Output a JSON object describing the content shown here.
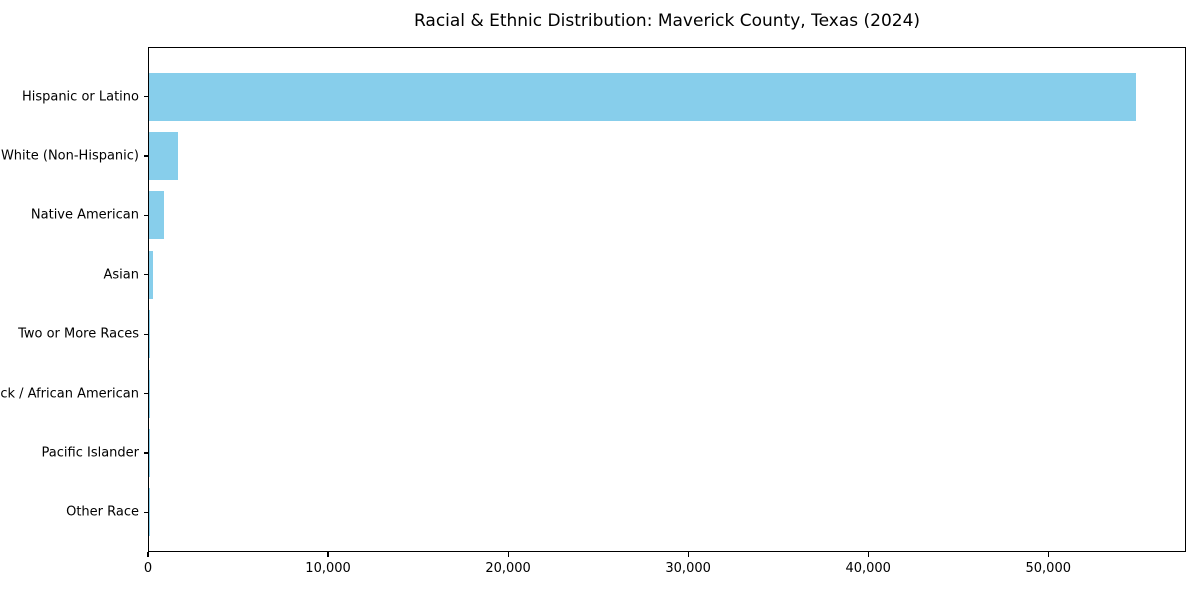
{
  "chart_data": {
    "type": "bar",
    "orientation": "horizontal",
    "title": "Racial & Ethnic Distribution: Maverick County, Texas (2024)",
    "categories": [
      "Hispanic or Latino",
      "White (Non-Hispanic)",
      "Native American",
      "Asian",
      "Two or More Races",
      "Black / African American",
      "Pacific Islander",
      "Other Race"
    ],
    "values": [
      54900,
      1600,
      850,
      250,
      60,
      55,
      10,
      5
    ],
    "xlabel": "",
    "ylabel": "",
    "xlim": [
      0,
      57650
    ],
    "x_ticks": [
      0,
      10000,
      20000,
      30000,
      40000,
      50000
    ],
    "x_tick_labels": [
      "0",
      "10,000",
      "20,000",
      "30,000",
      "40,000",
      "50,000"
    ],
    "bar_color": "#87ceeb",
    "grid": false,
    "legend": false,
    "frame": true
  }
}
